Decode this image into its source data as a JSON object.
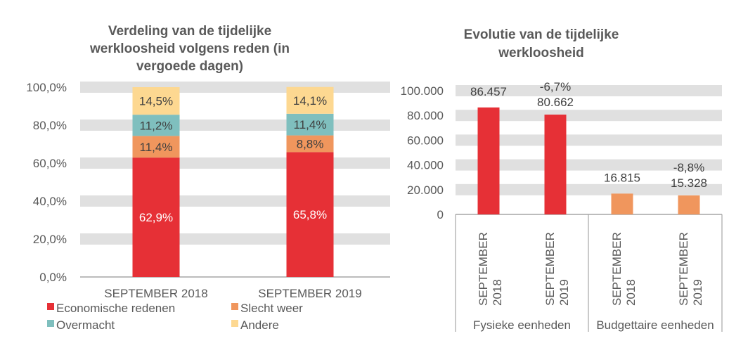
{
  "chart_data": [
    {
      "type": "bar",
      "stacked": true,
      "title": "Verdeling van de tijdelijke werkloosheid volgens reden (in vergoede dagen)",
      "title_lines": [
        "Verdeling van de tijdelijke",
        "werkloosheid volgens reden (in",
        "vergoede dagen)"
      ],
      "categories": [
        "SEPTEMBER 2018",
        "SEPTEMBER 2019"
      ],
      "series": [
        {
          "name": "Economische redenen",
          "color": "#E63036",
          "values": [
            62.9,
            65.8
          ],
          "labels": [
            "62,9%",
            "65,8%"
          ]
        },
        {
          "name": "Slecht weer",
          "color": "#F0965D",
          "values": [
            11.4,
            8.8
          ],
          "labels": [
            "11,4%",
            "8,8%"
          ]
        },
        {
          "name": "Overmacht",
          "color": "#7FBFBE",
          "values": [
            11.2,
            11.4
          ],
          "labels": [
            "11,2%",
            "11,4%"
          ]
        },
        {
          "name": "Andere",
          "color": "#FDD891",
          "values": [
            14.5,
            14.1
          ],
          "labels": [
            "14,5%",
            "14,1%"
          ]
        }
      ],
      "ylim": [
        0,
        100
      ],
      "yticks": [
        0,
        20,
        40,
        60,
        80,
        100
      ],
      "ytick_labels": [
        "0,0%",
        "20,0%",
        "40,0%",
        "60,0%",
        "80,0%",
        "100,0%"
      ],
      "grid": "banded",
      "legend": "bottom"
    },
    {
      "type": "bar",
      "title": "Evolutie van de tijdelijke werkloosheid",
      "title_lines": [
        "Evolutie van de tijdelijke",
        "werkloosheid"
      ],
      "groups": [
        {
          "name": "Fysieke eenheden",
          "color": "#E63036",
          "categories": [
            "SEPTEMBER 2018",
            "SEPTEMBER 2019"
          ],
          "values": [
            86457,
            80662
          ],
          "labels": [
            "86.457",
            "80.662"
          ],
          "change": [
            "",
            "-6,7%"
          ]
        },
        {
          "name": "Budgettaire eenheden",
          "color": "#F0965D",
          "categories": [
            "SEPTEMBER 2018",
            "SEPTEMBER 2019"
          ],
          "values": [
            16815,
            15328
          ],
          "labels": [
            "16.815",
            "15.328"
          ],
          "change": [
            "",
            "-8,8%"
          ]
        }
      ],
      "ylim": [
        0,
        100000
      ],
      "yticks": [
        0,
        20000,
        40000,
        60000,
        80000,
        100000
      ],
      "ytick_labels": [
        "0",
        "20.000",
        "40.000",
        "60.000",
        "80.000",
        "100.000"
      ],
      "grid": "banded",
      "legend": "none"
    }
  ],
  "colors": {
    "text": "#595959",
    "grid": "#E0E0E0",
    "axis": "#A6A6A6"
  }
}
